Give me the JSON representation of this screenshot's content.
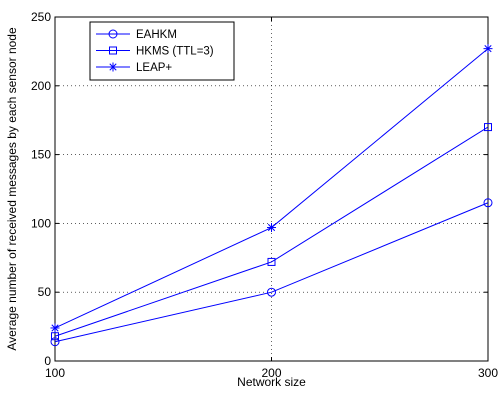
{
  "chart_data": {
    "type": "line",
    "x": [
      100,
      200,
      300
    ],
    "xlabel": "Network size",
    "ylabel": "Average number of received messages by each sensor node",
    "xlim": [
      100,
      300
    ],
    "ylim": [
      0,
      250
    ],
    "xticks": [
      "100",
      "200",
      "300"
    ],
    "yticks": [
      "0",
      "50",
      "100",
      "150",
      "200",
      "250"
    ],
    "grid": true,
    "legend_position": "top-left",
    "series": [
      {
        "name": "EAHKM",
        "marker": "circle",
        "values": [
          14,
          50,
          115
        ]
      },
      {
        "name": "HKMS (TTL=3)",
        "marker": "square",
        "values": [
          18,
          72,
          170
        ]
      },
      {
        "name": "LEAP+",
        "marker": "asterisk",
        "values": [
          24,
          97,
          227
        ]
      }
    ],
    "line_color": "#0000ff"
  }
}
